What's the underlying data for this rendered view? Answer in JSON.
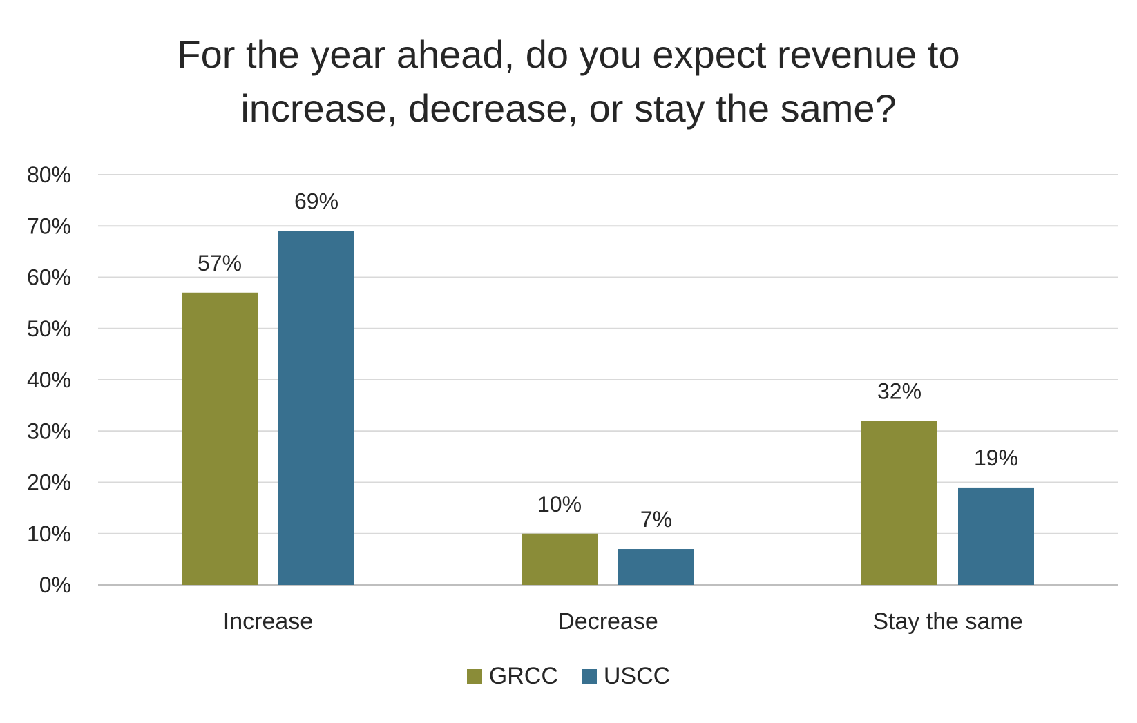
{
  "chart_data": {
    "type": "bar",
    "title": "For the year ahead, do you expect revenue to\nincrease, decrease, or stay the same?",
    "categories": [
      "Increase",
      "Decrease",
      "Stay the same"
    ],
    "series": [
      {
        "name": "GRCC",
        "values": [
          57,
          10,
          32
        ],
        "labels": [
          "57%",
          "10%",
          "32%"
        ],
        "color": "#8a8c38"
      },
      {
        "name": "USCC",
        "values": [
          69,
          7,
          19
        ],
        "labels": [
          "69%",
          "7%",
          "19%"
        ],
        "color": "#38708f"
      }
    ],
    "y_ticks": [
      "0%",
      "10%",
      "20%",
      "30%",
      "40%",
      "50%",
      "60%",
      "70%",
      "80%"
    ],
    "ylim": [
      0,
      80
    ],
    "unit": "%",
    "grid": true,
    "legend_position": "bottom",
    "colors": {
      "grid": "#d9d9d9",
      "axis": "#bfbfbf",
      "text": "#262626"
    }
  }
}
